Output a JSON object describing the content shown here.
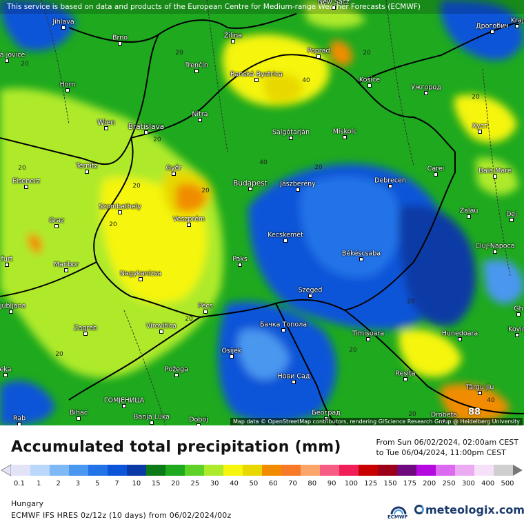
{
  "notice": "This service is based on data and products of the European Centre for Medium-range Weather Forecasts (ECMWF)",
  "credit": "Map data © OpenStreetMap contributors, rendering GIScience Research Group @ Heidelberg University",
  "cities": [
    {
      "name": "Jihlava"
    },
    {
      "name": "Brno"
    },
    {
      "name": "Žilina"
    },
    {
      "name": "Poprad"
    },
    {
      "name": "Дрогобич"
    },
    {
      "name": "Trenčín"
    },
    {
      "name": "Banská Bystrica"
    },
    {
      "name": "Košice"
    },
    {
      "name": "Horn"
    },
    {
      "name": "Ужгород"
    },
    {
      "name": "Nitra"
    },
    {
      "name": "Wien"
    },
    {
      "name": "Bratislava"
    },
    {
      "name": "Salgótarján"
    },
    {
      "name": "Miskolc"
    },
    {
      "name": "Хуст"
    },
    {
      "name": "Ternitz"
    },
    {
      "name": "Győr"
    },
    {
      "name": "Carei"
    },
    {
      "name": "Baia Mare"
    },
    {
      "name": "Eisenerz"
    },
    {
      "name": "Budapest"
    },
    {
      "name": "Jászberény"
    },
    {
      "name": "Debrecen"
    },
    {
      "name": "Szombathely"
    },
    {
      "name": "Zalău"
    },
    {
      "name": "Dej"
    },
    {
      "name": "Graz"
    },
    {
      "name": "Veszprém"
    },
    {
      "name": "Kecskemét"
    },
    {
      "name": "Cluj-Napoca"
    },
    {
      "name": "Maribor"
    },
    {
      "name": "Paks"
    },
    {
      "name": "Békéscsaba"
    },
    {
      "name": "Nagykanizsa"
    },
    {
      "name": "Szeged"
    },
    {
      "name": "Ljubljana"
    },
    {
      "name": "Pécs"
    },
    {
      "name": "Бачка Топола"
    },
    {
      "name": "Zagreb"
    },
    {
      "name": "Virovitica"
    },
    {
      "name": "Timișoara"
    },
    {
      "name": "Hunedoara"
    },
    {
      "name": "Osijek"
    },
    {
      "name": "Reșița"
    },
    {
      "name": "Požega"
    },
    {
      "name": "Нови Сад"
    },
    {
      "name": "Târgu Jiu"
    },
    {
      "name": "Bihać"
    },
    {
      "name": "ГОМЈЕНИЦА"
    },
    {
      "name": "Banja Luka"
    },
    {
      "name": "Doboj"
    },
    {
      "name": "Београд"
    },
    {
      "name": "Drobeta"
    },
    {
      "name": "Rab"
    },
    {
      "name": "New Sącz"
    },
    {
      "name": "Kraj"
    },
    {
      "name": "Kovin"
    },
    {
      "name": "eská jovice"
    },
    {
      "name": "furt"
    },
    {
      "name": "eka"
    },
    {
      "name": "Gh"
    }
  ],
  "contours": [
    "20",
    "20",
    "40",
    "20",
    "20",
    "20",
    "20",
    "40",
    "20",
    "20",
    "20",
    "20",
    "20",
    "20",
    "40",
    "20",
    "20",
    "20"
  ],
  "peak_value": "88",
  "legend": {
    "title": "Accumulated total precipitation (mm)",
    "from": "From Sun 06/02/2024, 02:00am CEST",
    "to": "to Tue 06/04/2024, 11:00pm CEST",
    "labels": [
      "0.1",
      "1",
      "2",
      "3",
      "5",
      "7",
      "10",
      "15",
      "20",
      "25",
      "30",
      "40",
      "50",
      "60",
      "70",
      "80",
      "90",
      "100",
      "125",
      "150",
      "175",
      "200",
      "250",
      "300",
      "400",
      "500"
    ],
    "colors": [
      "#e3e3f8",
      "#b9d8fb",
      "#7fb9f5",
      "#4a97ef",
      "#2373e8",
      "#0d55d8",
      "#0a3aa6",
      "#0c7a16",
      "#1ea91e",
      "#5fd22a",
      "#aeea2c",
      "#f5f50e",
      "#e8d800",
      "#f18c00",
      "#f77a28",
      "#fba56a",
      "#f75c84",
      "#f01f58",
      "#c80000",
      "#9b0018",
      "#6e0a7d",
      "#b40ae0",
      "#dc6af0",
      "#ebaaf2",
      "#f5e2f8",
      "#cfcfcf"
    ],
    "region": "Hungary",
    "model": "ECMWF IFS HRES 0z/12z (10 days) from 06/02/2024/00z",
    "ecmwf_label": "ECMWF",
    "brand": "meteologix.com"
  }
}
